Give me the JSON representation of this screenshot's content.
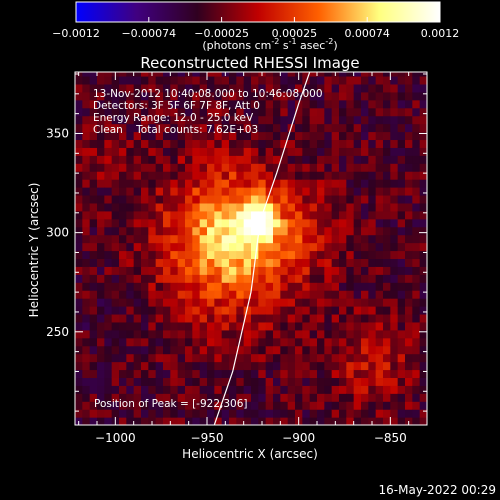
{
  "title": "Reconstructed RHESSI Image",
  "colorbar": {
    "ticks": [
      "-0.0012",
      "-0.00074",
      "-0.00025",
      "0.00025",
      "0.00074",
      "0.0012"
    ],
    "unit_main": "(photons cm",
    "unit_exp1": "-2",
    "unit_mid": " s",
    "unit_exp2": "-1",
    "unit_end": " asec",
    "unit_exp3": "-2",
    "unit_close": ")",
    "colors": [
      "#0000ff",
      "#400080",
      "#300020",
      "#c00000",
      "#ff6000",
      "#ffff80",
      "#ffffff"
    ]
  },
  "info": {
    "line1": "13-Nov-2012 10:40:08.000 to 10:46:08.000",
    "line2": "Detectors: 3F 5F 6F 7F 8F, Att 0",
    "line3": "Energy Range: 12.0 - 25.0 keV",
    "line4": "Clean    Total counts: 7.62E+03"
  },
  "peak_label": "Position of Peak = [-922,306]",
  "footer_date": "16-May-2022 00:29",
  "chart_data": {
    "type": "heatmap",
    "title": "Reconstructed RHESSI Image",
    "xlabel": "Heliocentric X (arcsec)",
    "ylabel": "Heliocentric Y (arcsec)",
    "xlim": [
      -1022,
      -830
    ],
    "ylim": [
      203,
      381
    ],
    "x_ticks": [
      -1000,
      -950,
      -900,
      -850
    ],
    "y_ticks": [
      250,
      300,
      350
    ],
    "x_tick_labels": [
      "−1000",
      "−950",
      "−900",
      "−850"
    ],
    "y_tick_labels": [
      "250",
      "300",
      "350"
    ],
    "peak_position": [
      -922,
      306
    ],
    "limb_curve": [
      [
        -946,
        203
      ],
      [
        -936,
        230
      ],
      [
        -926,
        270
      ],
      [
        -921,
        306
      ],
      [
        -912,
        330
      ],
      [
        -900,
        365
      ],
      [
        -894,
        381
      ]
    ],
    "sources": [
      {
        "x": -922,
        "y": 306,
        "sigma": 6,
        "amp": 0.0012
      },
      {
        "x": -935,
        "y": 300,
        "sigma": 20,
        "amp": 0.00075
      },
      {
        "x": -942,
        "y": 290,
        "sigma": 30,
        "amp": 0.00045
      },
      {
        "x": -895,
        "y": 300,
        "sigma": 14,
        "amp": 0.0003
      },
      {
        "x": -860,
        "y": 235,
        "sigma": 16,
        "amp": 0.00035
      },
      {
        "x": -1005,
        "y": 340,
        "sigma": 12,
        "amp": 0.00015
      },
      {
        "x": -1000,
        "y": 260,
        "sigma": 18,
        "amp": -5e-05
      }
    ],
    "pixel_size_arcsec": 4,
    "background": -0.00035,
    "vmin": -0.0012,
    "vmax": 0.0012
  }
}
